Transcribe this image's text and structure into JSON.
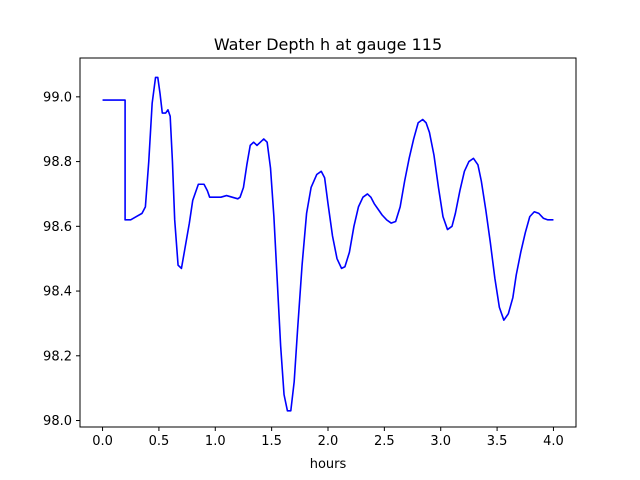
{
  "chart_data": {
    "type": "line",
    "title": "Water Depth h at gauge 115",
    "xlabel": "hours",
    "ylabel": "",
    "xlim": [
      -0.2,
      4.2
    ],
    "ylim": [
      97.98,
      99.12
    ],
    "xticks": [
      0.0,
      0.5,
      1.0,
      1.5,
      2.0,
      2.5,
      3.0,
      3.5,
      4.0
    ],
    "xtick_labels": [
      "0.0",
      "0.5",
      "1.0",
      "1.5",
      "2.0",
      "2.5",
      "3.0",
      "3.5",
      "4.0"
    ],
    "yticks": [
      98.0,
      98.2,
      98.4,
      98.6,
      98.8,
      99.0
    ],
    "ytick_labels": [
      "98.0",
      "98.2",
      "98.4",
      "98.6",
      "98.8",
      "99.0"
    ],
    "grid": false,
    "series": [
      {
        "color": "#0000ff",
        "x": [
          0.0,
          0.1,
          0.2,
          0.2,
          0.25,
          0.3,
          0.35,
          0.38,
          0.41,
          0.44,
          0.47,
          0.49,
          0.51,
          0.53,
          0.56,
          0.58,
          0.6,
          0.62,
          0.64,
          0.67,
          0.7,
          0.73,
          0.77,
          0.8,
          0.85,
          0.9,
          0.93,
          0.95,
          0.98,
          1.0,
          1.05,
          1.1,
          1.15,
          1.2,
          1.22,
          1.25,
          1.28,
          1.31,
          1.34,
          1.37,
          1.4,
          1.43,
          1.46,
          1.49,
          1.52,
          1.55,
          1.58,
          1.61,
          1.64,
          1.67,
          1.7,
          1.73,
          1.77,
          1.81,
          1.85,
          1.9,
          1.94,
          1.97,
          2.0,
          2.04,
          2.08,
          2.12,
          2.15,
          2.19,
          2.23,
          2.27,
          2.31,
          2.35,
          2.38,
          2.41,
          2.45,
          2.48,
          2.52,
          2.56,
          2.6,
          2.64,
          2.68,
          2.72,
          2.76,
          2.8,
          2.84,
          2.87,
          2.9,
          2.94,
          2.98,
          3.02,
          3.06,
          3.1,
          3.13,
          3.17,
          3.21,
          3.25,
          3.29,
          3.33,
          3.36,
          3.4,
          3.44,
          3.48,
          3.52,
          3.56,
          3.6,
          3.64,
          3.67,
          3.71,
          3.75,
          3.79,
          3.83,
          3.87,
          3.91,
          3.95,
          3.98,
          4.0
        ],
        "y": [
          98.99,
          98.99,
          98.99,
          98.62,
          98.62,
          98.63,
          98.64,
          98.66,
          98.8,
          98.98,
          99.06,
          99.06,
          99.01,
          98.95,
          98.95,
          98.96,
          98.94,
          98.8,
          98.62,
          98.48,
          98.47,
          98.53,
          98.61,
          98.68,
          98.73,
          98.73,
          98.71,
          98.69,
          98.69,
          98.69,
          98.69,
          98.695,
          98.69,
          98.685,
          98.69,
          98.72,
          98.79,
          98.85,
          98.86,
          98.85,
          98.86,
          98.87,
          98.86,
          98.78,
          98.63,
          98.43,
          98.23,
          98.08,
          98.03,
          98.03,
          98.12,
          98.28,
          98.48,
          98.64,
          98.72,
          98.76,
          98.77,
          98.75,
          98.67,
          98.57,
          98.5,
          98.47,
          98.475,
          98.52,
          98.6,
          98.66,
          98.69,
          98.7,
          98.69,
          98.67,
          98.65,
          98.635,
          98.62,
          98.61,
          98.615,
          98.66,
          98.74,
          98.81,
          98.87,
          98.92,
          98.93,
          98.92,
          98.89,
          98.82,
          98.72,
          98.63,
          98.59,
          98.6,
          98.64,
          98.71,
          98.77,
          98.8,
          98.81,
          98.79,
          98.74,
          98.65,
          98.55,
          98.44,
          98.35,
          98.31,
          98.33,
          98.38,
          98.45,
          98.52,
          98.58,
          98.63,
          98.645,
          98.64,
          98.625,
          98.62,
          98.62,
          98.62
        ]
      }
    ]
  }
}
